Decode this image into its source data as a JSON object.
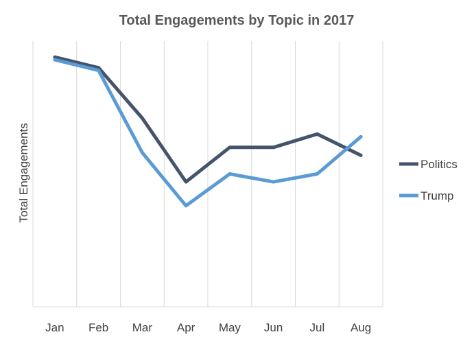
{
  "chart_data": {
    "type": "line",
    "title": "Total Engagements by Topic in 2017",
    "xlabel": "",
    "ylabel": "Total Engagements",
    "categories": [
      "Jan",
      "Feb",
      "Mar",
      "Apr",
      "May",
      "Jun",
      "Jul",
      "Aug"
    ],
    "ylim": [
      0,
      100
    ],
    "grid": "vertical",
    "legend": "right",
    "series": [
      {
        "name": "Politics",
        "color": "#44546A",
        "values": [
          94,
          90,
          71,
          47,
          60,
          60,
          65,
          57
        ]
      },
      {
        "name": "Trump",
        "color": "#5B9BD5",
        "values": [
          93,
          89,
          58,
          38,
          50,
          47,
          50,
          64
        ]
      }
    ]
  }
}
